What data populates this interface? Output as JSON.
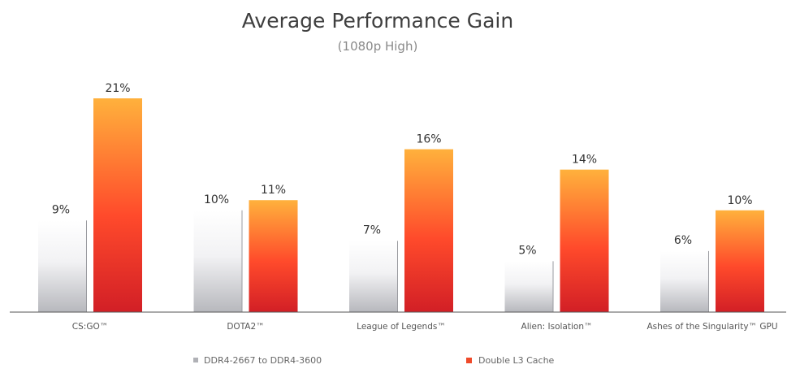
{
  "chart_data": {
    "type": "bar",
    "title": "Average Performance Gain",
    "subtitle": "(1080p High)",
    "categories": [
      "CS:GO™",
      "DOTA2™",
      "League of Legends™",
      "Alien: Isolation™",
      "Ashes of the Singularity™ GPU"
    ],
    "series": [
      {
        "name": "DDR4-2667 to DDR4-3600",
        "values": [
          9,
          10,
          7,
          5,
          6
        ],
        "labels": [
          "9%",
          "10%",
          "7%",
          "5%",
          "6%"
        ],
        "color": "#c8c8cc"
      },
      {
        "name": "Double L3 Cache",
        "values": [
          21,
          11,
          16,
          14,
          10
        ],
        "labels": [
          "21%",
          "11%",
          "16%",
          "14%",
          "10%"
        ],
        "color": "#f2402a"
      }
    ],
    "ylim": [
      0,
      21
    ],
    "grid": false,
    "legend": "bottom",
    "xlabel": "",
    "ylabel": ""
  }
}
